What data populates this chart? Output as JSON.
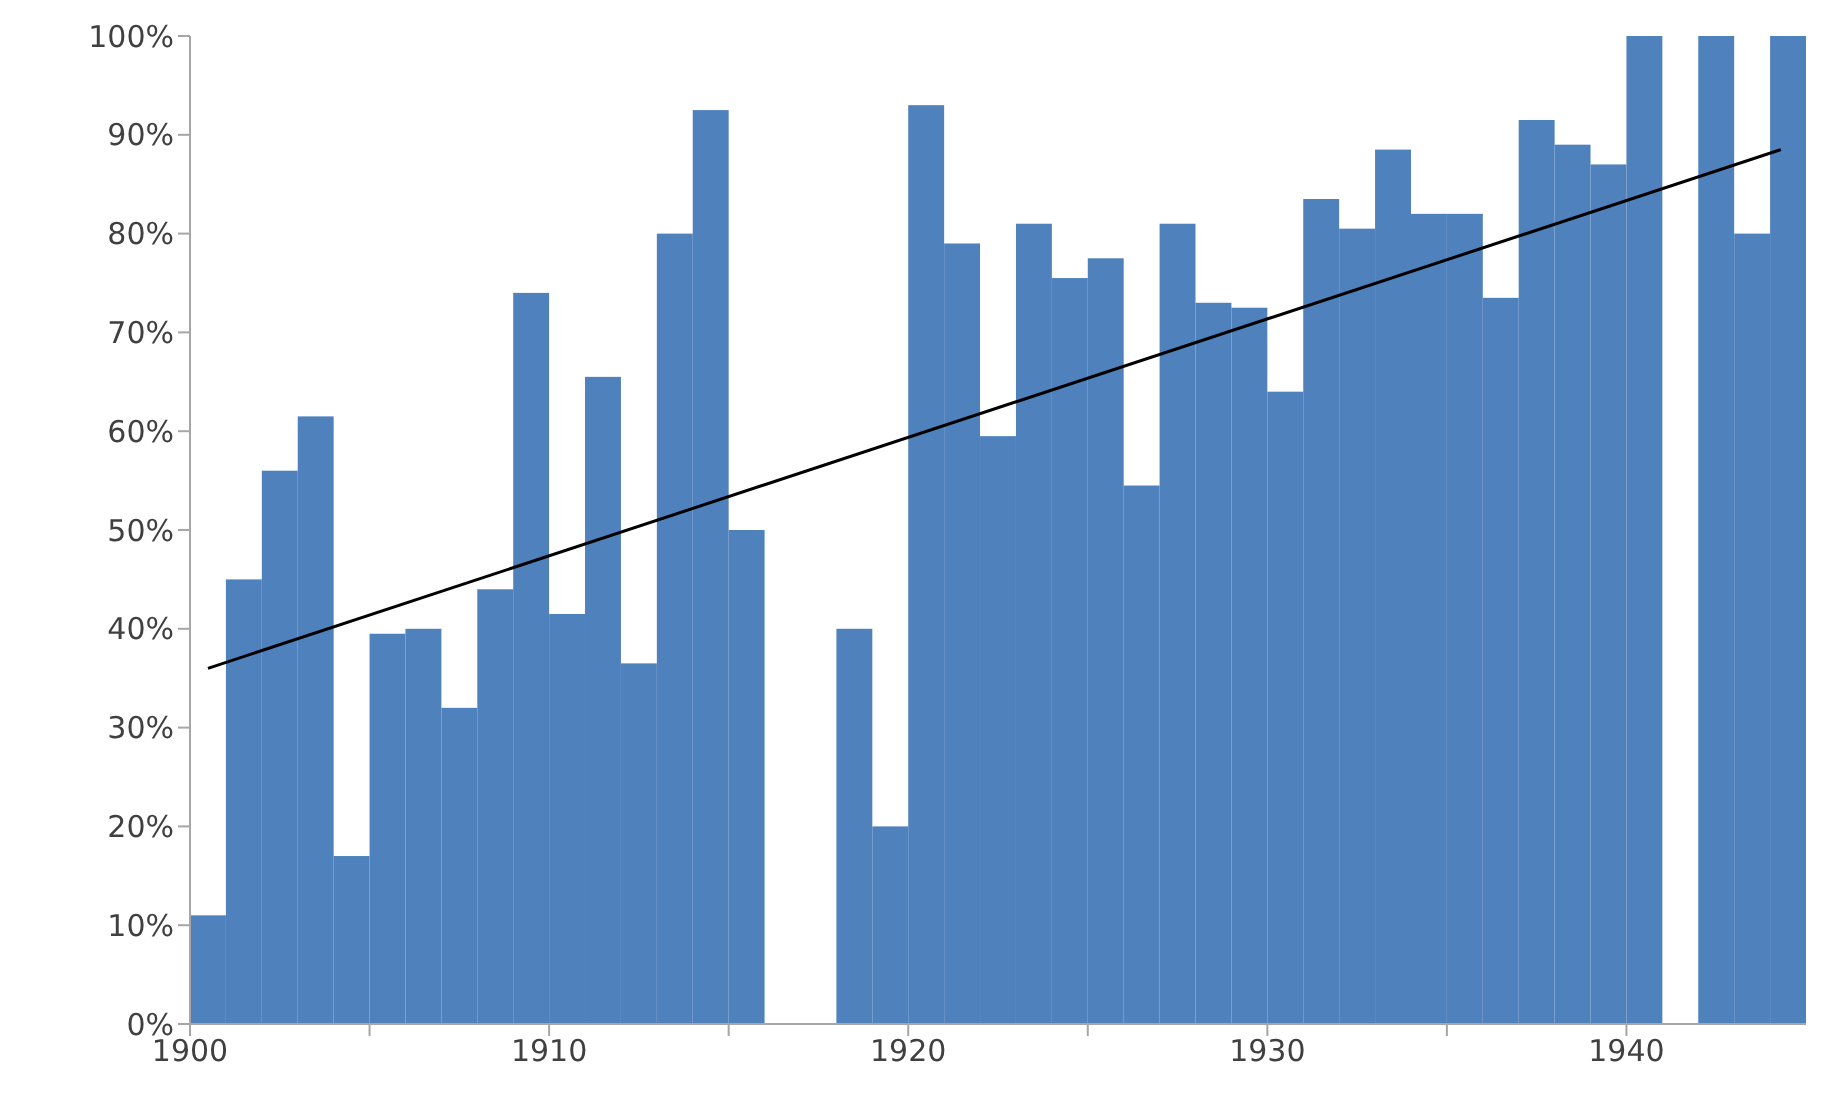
{
  "chart_data": {
    "type": "histogram",
    "bins": [
      1900,
      1901,
      1902,
      1903,
      1904,
      1905,
      1906,
      1907,
      1908,
      1909,
      1910,
      1911,
      1912,
      1913,
      1914,
      1915,
      1916,
      1917,
      1918,
      1919,
      1920,
      1921,
      1922,
      1923,
      1924,
      1925,
      1926,
      1927,
      1928,
      1929,
      1930,
      1931,
      1932,
      1933,
      1934,
      1935,
      1936,
      1937,
      1938,
      1939,
      1940,
      1941,
      1942,
      1943,
      1944,
      1945
    ],
    "series": [
      {
        "type": "histogram",
        "color": "#4f81bd",
        "values": [
          11,
          45,
          56,
          61.5,
          17,
          39.5,
          40,
          32,
          44,
          74,
          41.5,
          65.5,
          36.5,
          80,
          92.5,
          50,
          0,
          0,
          40,
          20,
          93,
          79,
          59.5,
          81,
          75.5,
          77.5,
          54.5,
          81,
          73,
          72.5,
          64,
          83.5,
          80.5,
          88.5,
          82,
          82,
          73.5,
          91.5,
          89,
          87,
          100,
          0,
          100,
          80,
          100
        ]
      },
      {
        "type": "line",
        "color": "#000000",
        "x": [
          1900.5,
          1944.3
        ],
        "values": [
          36,
          88.5
        ]
      }
    ],
    "xlim": [
      1900,
      1945
    ],
    "xticks": [
      1900,
      {
        "value": 1905,
        "label": null
      },
      1910,
      {
        "value": 1915,
        "label": null
      },
      1920,
      {
        "value": 1925,
        "label": null
      },
      1930,
      {
        "value": 1935,
        "label": null
      },
      1940
    ],
    "ylim": [
      0,
      100
    ],
    "yticks": [
      {
        "value": 0,
        "label": "0%"
      },
      {
        "value": 10,
        "label": "10%"
      },
      {
        "value": 20,
        "label": "20%"
      },
      {
        "value": 30,
        "label": "30%"
      },
      {
        "value": 40,
        "label": "40%"
      },
      {
        "value": 50,
        "label": "50%"
      },
      {
        "value": 60,
        "label": "60%"
      },
      {
        "value": 70,
        "label": "70%"
      },
      {
        "value": 80,
        "label": "80%"
      },
      {
        "value": 90,
        "label": "90%"
      },
      {
        "value": 100,
        "label": "100%"
      }
    ],
    "grid": false,
    "legend": false,
    "marker": "none",
    "line_style": "solid"
  }
}
